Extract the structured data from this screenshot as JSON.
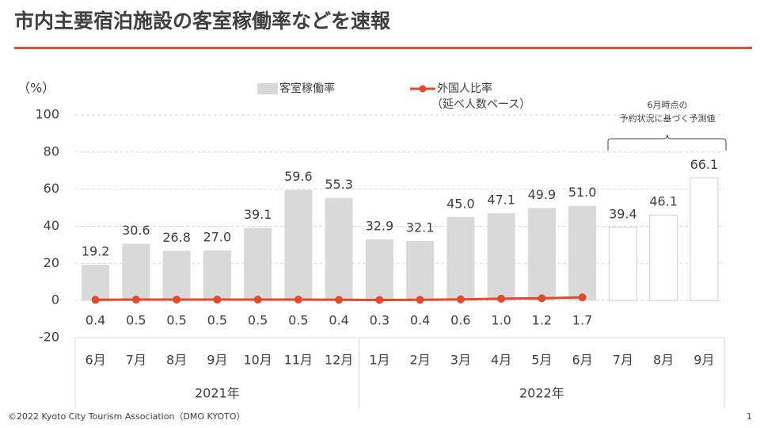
{
  "title": "市内主要宿泊施設の客室稼働率などを速報",
  "chart_data": {
    "type": "bar-line",
    "y_unit": "（%）",
    "groups": [
      {
        "label": "2021年",
        "categories": [
          "6月",
          "7月",
          "8月",
          "9月",
          "10月",
          "11月",
          "12月"
        ]
      },
      {
        "label": "2022年",
        "categories": [
          "1月",
          "2月",
          "3月",
          "4月",
          "5月",
          "6月",
          "7月",
          "8月",
          "9月"
        ]
      }
    ],
    "series": [
      {
        "name": "客室稼働率",
        "type": "bar",
        "color": "#d9d9d9",
        "values": [
          19.2,
          30.6,
          26.8,
          27.0,
          39.1,
          59.6,
          55.3,
          32.9,
          32.1,
          45.0,
          47.1,
          49.9,
          51.0,
          39.4,
          46.1,
          66.1
        ],
        "value_labels": [
          "19.2",
          "30.6",
          "26.8",
          "27.0",
          "39.1",
          "59.6",
          "55.3",
          "32.9",
          "32.1",
          "45.0",
          "47.1",
          "49.9",
          "51.0",
          "39.4",
          "46.1",
          "66.1"
        ],
        "forecast": [
          false,
          false,
          false,
          false,
          false,
          false,
          false,
          false,
          false,
          false,
          false,
          false,
          false,
          true,
          true,
          true
        ]
      },
      {
        "name": "外国人比率",
        "legend_note": "（延べ人数ベース）",
        "type": "line",
        "color": "#e04a2f",
        "values": [
          0.4,
          0.5,
          0.5,
          0.5,
          0.5,
          0.5,
          0.4,
          0.3,
          0.4,
          0.6,
          1.0,
          1.2,
          1.7,
          null,
          null,
          null
        ],
        "value_labels": [
          "0.4",
          "0.5",
          "0.5",
          "0.5",
          "0.5",
          "0.5",
          "0.4",
          "0.3",
          "0.4",
          "0.6",
          "1.0",
          "1.2",
          "1.7",
          null,
          null,
          null
        ]
      }
    ],
    "annotation": [
      "6月時点の",
      "予約状況に基づく予測値"
    ],
    "ylim": [
      -20,
      100
    ],
    "yticks": [
      -20,
      0,
      20,
      40,
      60,
      80,
      100
    ],
    "grid": true
  },
  "footer": "©2022 Kyoto City Tourism Association（DMO KYOTO）",
  "page": 1
}
